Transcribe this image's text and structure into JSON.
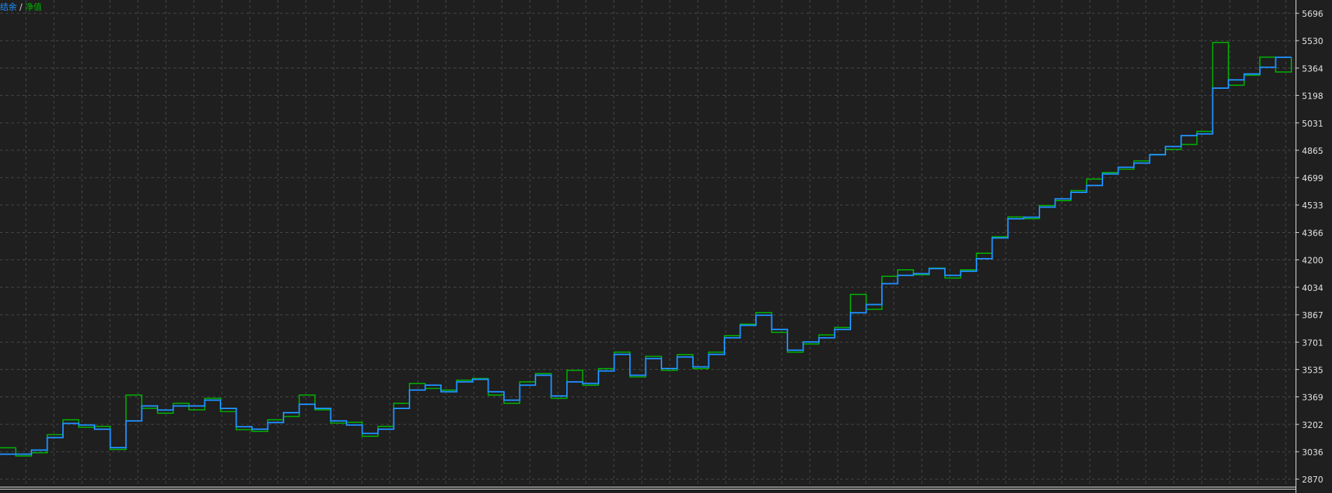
{
  "legend": {
    "balance_label": "结余",
    "separator": "/",
    "equity_label": "净值"
  },
  "colors": {
    "background": "#1f1f1f",
    "grid": "#4a4a4a",
    "balance": "#1e90ff",
    "equity": "#00b400",
    "axis_text": "#e0e0e0"
  },
  "chart_data": {
    "type": "line",
    "title": "",
    "xlabel": "",
    "ylabel": "",
    "ylim": [
      2870,
      5696
    ],
    "y_ticks": [
      5696,
      5530,
      5364,
      5198,
      5031,
      4865,
      4699,
      4533,
      4366,
      4200,
      4034,
      3867,
      3701,
      3535,
      3369,
      3202,
      3036,
      2870
    ],
    "grid": true,
    "legend": "top-left",
    "series": [
      {
        "name": "结余",
        "values": [
          3021,
          3021,
          3046,
          3122,
          3208,
          3198,
          3173,
          3061,
          3223,
          3314,
          3289,
          3314,
          3314,
          3349,
          3299,
          3188,
          3173,
          3213,
          3273,
          3324,
          3299,
          3223,
          3198,
          3147,
          3173,
          3299,
          3410,
          3440,
          3400,
          3460,
          3475,
          3400,
          3349,
          3440,
          3500,
          3374,
          3460,
          3450,
          3526,
          3627,
          3500,
          3601,
          3541,
          3611,
          3551,
          3627,
          3727,
          3803,
          3864,
          3778,
          3652,
          3702,
          3727,
          3778,
          3879,
          3929,
          4056,
          4106,
          4116,
          4147,
          4106,
          4131,
          4207,
          4333,
          4449,
          4459,
          4520,
          4570,
          4610,
          4651,
          4721,
          4762,
          4787,
          4838,
          4888,
          4954,
          4964,
          5242,
          5292,
          5328,
          5368,
          5429,
          5429
        ]
      },
      {
        "name": "净值",
        "values": [
          3060,
          3010,
          3030,
          3140,
          3230,
          3185,
          3190,
          3050,
          3380,
          3300,
          3270,
          3330,
          3290,
          3360,
          3280,
          3170,
          3160,
          3230,
          3250,
          3380,
          3290,
          3210,
          3215,
          3130,
          3190,
          3330,
          3450,
          3420,
          3410,
          3470,
          3480,
          3380,
          3330,
          3460,
          3510,
          3360,
          3530,
          3440,
          3540,
          3640,
          3490,
          3615,
          3530,
          3625,
          3540,
          3640,
          3740,
          3810,
          3880,
          3760,
          3640,
          3690,
          3745,
          3790,
          3990,
          3900,
          4100,
          4140,
          4110,
          4150,
          4090,
          4140,
          4240,
          4340,
          4460,
          4450,
          4530,
          4560,
          4620,
          4690,
          4730,
          4750,
          4800,
          4840,
          4870,
          4900,
          4980,
          5519,
          5260,
          5320,
          5430,
          5340,
          5429
        ]
      }
    ]
  }
}
